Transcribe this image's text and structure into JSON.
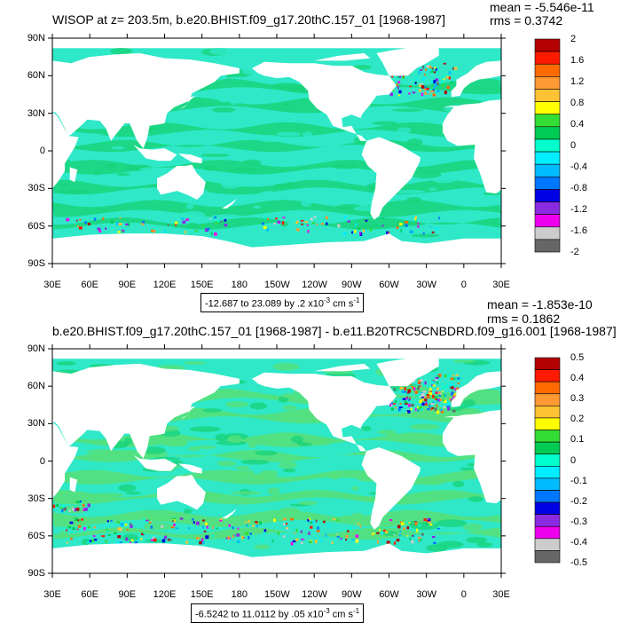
{
  "panels": [
    {
      "title": "WISOP at z= 203.5m, b.e20.BHIST.f09_g17.20thC.157_01 [1968-1987]",
      "mean_label": "mean = -5.546e-11",
      "rms_label": "rms = 0.3742",
      "range_label": "-12.687 to 23.089 by .2 x10",
      "range_exp": "-3",
      "range_unit": " cm s",
      "range_unit_exp": "-1",
      "lat_ticks": [
        "90N",
        "60N",
        "30N",
        "0",
        "30S",
        "60S",
        "90S"
      ],
      "lon_ticks": [
        "30E",
        "60E",
        "90E",
        "120E",
        "150E",
        "180",
        "150W",
        "120W",
        "90W",
        "60W",
        "30W",
        "0",
        "30E"
      ],
      "colorbar": [
        "2",
        "1.6",
        "1.2",
        "0.8",
        "0.4",
        "0",
        "-0.4",
        "-0.8",
        "-1.2",
        "-1.6",
        "-2"
      ]
    },
    {
      "title": "b.e20.BHIST.f09_g17.20thC.157_01 [1968-1987] - b.e11.B20TRC5CNBDRD.f09_g16.001 [1968-1987]",
      "mean_label": "mean = -1.853e-10",
      "rms_label": "rms = 0.1862",
      "range_label": "-6.5242 to 11.0112 by .05 x10",
      "range_exp": "-3",
      "range_unit": " cm s",
      "range_unit_exp": "-1",
      "lat_ticks": [
        "90N",
        "60N",
        "30N",
        "0",
        "30S",
        "60S",
        "90S"
      ],
      "lon_ticks": [
        "30E",
        "60E",
        "90E",
        "120E",
        "150E",
        "180",
        "150W",
        "120W",
        "90W",
        "60W",
        "30W",
        "0",
        "30E"
      ],
      "colorbar": [
        "0.5",
        "0.4",
        "0.3",
        "0.2",
        "0.1",
        "0",
        "-0.1",
        "-0.2",
        "-0.3",
        "-0.4",
        "-0.5"
      ]
    }
  ],
  "colors": {
    "ocean_main": "#2ee8c8",
    "ocean_alt": "#19d37a",
    "ocean_light": "#55e07a",
    "land": "#ffffff",
    "palette": [
      "#b30000",
      "#ff1a00",
      "#ff6a00",
      "#ff9933",
      "#ffc233",
      "#ffff00",
      "#33dd33",
      "#00cc55",
      "#00ffcc",
      "#00eeff",
      "#00bbff",
      "#0077ff",
      "#0000e6",
      "#8a2be2",
      "#ee00ee",
      "#cccccc",
      "#666666"
    ]
  },
  "chart_data": [
    {
      "type": "heatmap",
      "title": "WISOP at z= 203.5m, b.e20.BHIST.f09_g17.20thC.157_01 [1968-1987]",
      "xlabel": "",
      "ylabel": "",
      "x_ticks": [
        "30E",
        "60E",
        "90E",
        "120E",
        "150E",
        "180",
        "150W",
        "120W",
        "90W",
        "60W",
        "30W",
        "0",
        "30E"
      ],
      "y_ticks": [
        "90N",
        "60N",
        "30N",
        "0",
        "30S",
        "60S",
        "90S"
      ],
      "colorbar_levels": [
        -2,
        -1.6,
        -1.2,
        -0.8,
        -0.4,
        0,
        0.4,
        0.8,
        1.2,
        1.6,
        2
      ],
      "mean": -5.546e-11,
      "rms": 0.3742,
      "data_min": -12.687,
      "data_max": 23.089,
      "contour_interval": 0.2,
      "units": "x10^-3 cm s^-1"
    },
    {
      "type": "heatmap",
      "title": "b.e20.BHIST.f09_g17.20thC.157_01 [1968-1987] - b.e11.B20TRC5CNBDRD.f09_g16.001 [1968-1987]",
      "xlabel": "",
      "ylabel": "",
      "x_ticks": [
        "30E",
        "60E",
        "90E",
        "120E",
        "150E",
        "180",
        "150W",
        "120W",
        "90W",
        "60W",
        "30W",
        "0",
        "30E"
      ],
      "y_ticks": [
        "90N",
        "60N",
        "30N",
        "0",
        "30S",
        "60S",
        "90S"
      ],
      "colorbar_levels": [
        -0.5,
        -0.4,
        -0.3,
        -0.2,
        -0.1,
        0,
        0.1,
        0.2,
        0.3,
        0.4,
        0.5
      ],
      "mean": -1.853e-10,
      "rms": 0.1862,
      "data_min": -6.5242,
      "data_max": 11.0112,
      "contour_interval": 0.05,
      "units": "x10^-3 cm s^-1"
    }
  ]
}
